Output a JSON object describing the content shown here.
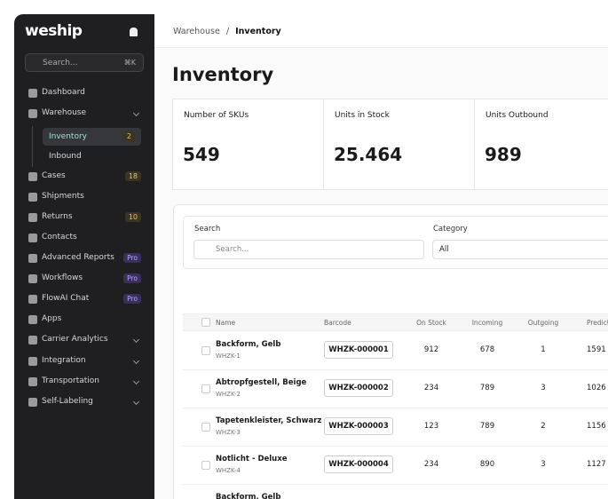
{
  "sidebar": {
    "logo": "weship",
    "search": {
      "placeholder": "Search...",
      "shortcut": "⌘K"
    },
    "nav": [
      {
        "label": "Dashboard"
      },
      {
        "label": "Warehouse",
        "chevron": true
      },
      {
        "label": "Inventory",
        "badge": "2",
        "sub": true,
        "active": true
      },
      {
        "label": "Inbound",
        "sub": true
      },
      {
        "label": "Cases",
        "badge": "18"
      },
      {
        "label": "Shipments"
      },
      {
        "label": "Returns",
        "badge": "10"
      },
      {
        "label": "Contacts"
      },
      {
        "label": "Advanced Reports",
        "pro": "Pro"
      },
      {
        "label": "Workflows",
        "pro": "Pro"
      },
      {
        "label": "FlowAI Chat",
        "pro": "Pro"
      },
      {
        "label": "Apps"
      },
      {
        "label": "Carrier Analytics",
        "chevron": true
      },
      {
        "label": "Integration",
        "chevron": true
      },
      {
        "label": "Transportation",
        "chevron": true
      },
      {
        "label": "Self-Labeling",
        "chevron": true
      }
    ]
  },
  "breadcrumb": {
    "parent": "Warehouse",
    "separator": "/",
    "current": "Inventory"
  },
  "title": "Inventory",
  "stats": [
    {
      "label": "Number of SKUs",
      "value": "549"
    },
    {
      "label": "Units in Stock",
      "value": "25.464"
    },
    {
      "label": "Units Outbound",
      "value": "989"
    }
  ],
  "filters": {
    "search_label": "Search",
    "search_placeholder": "Search...",
    "category_label": "Category",
    "category_value": "All"
  },
  "table": {
    "headers": [
      "Name",
      "Barcode",
      "On Stock",
      "Incoming",
      "Outgoing",
      "Predicted"
    ],
    "rows": [
      {
        "name": "Backform, Gelb",
        "sku": "WHZK-1",
        "barcode": "WHZK-000001",
        "on_stock": "912",
        "incoming": "678",
        "outgoing": "1",
        "predicted": "1591"
      },
      {
        "name": "Abtropfgestell, Beige",
        "sku": "WHZK-2",
        "barcode": "WHZK-000002",
        "on_stock": "234",
        "incoming": "789",
        "outgoing": "3",
        "predicted": "1026"
      },
      {
        "name": "Tapetenkleister, Schwarz",
        "sku": "WHZK-3",
        "barcode": "WHZK-000003",
        "on_stock": "123",
        "incoming": "789",
        "outgoing": "2",
        "predicted": "1156"
      },
      {
        "name": "Notlicht - Deluxe",
        "sku": "WHZK-4",
        "barcode": "WHZK-000004",
        "on_stock": "234",
        "incoming": "890",
        "outgoing": "3",
        "predicted": "1127"
      }
    ],
    "partial_row": {
      "name": "Backform, Gelb"
    }
  }
}
